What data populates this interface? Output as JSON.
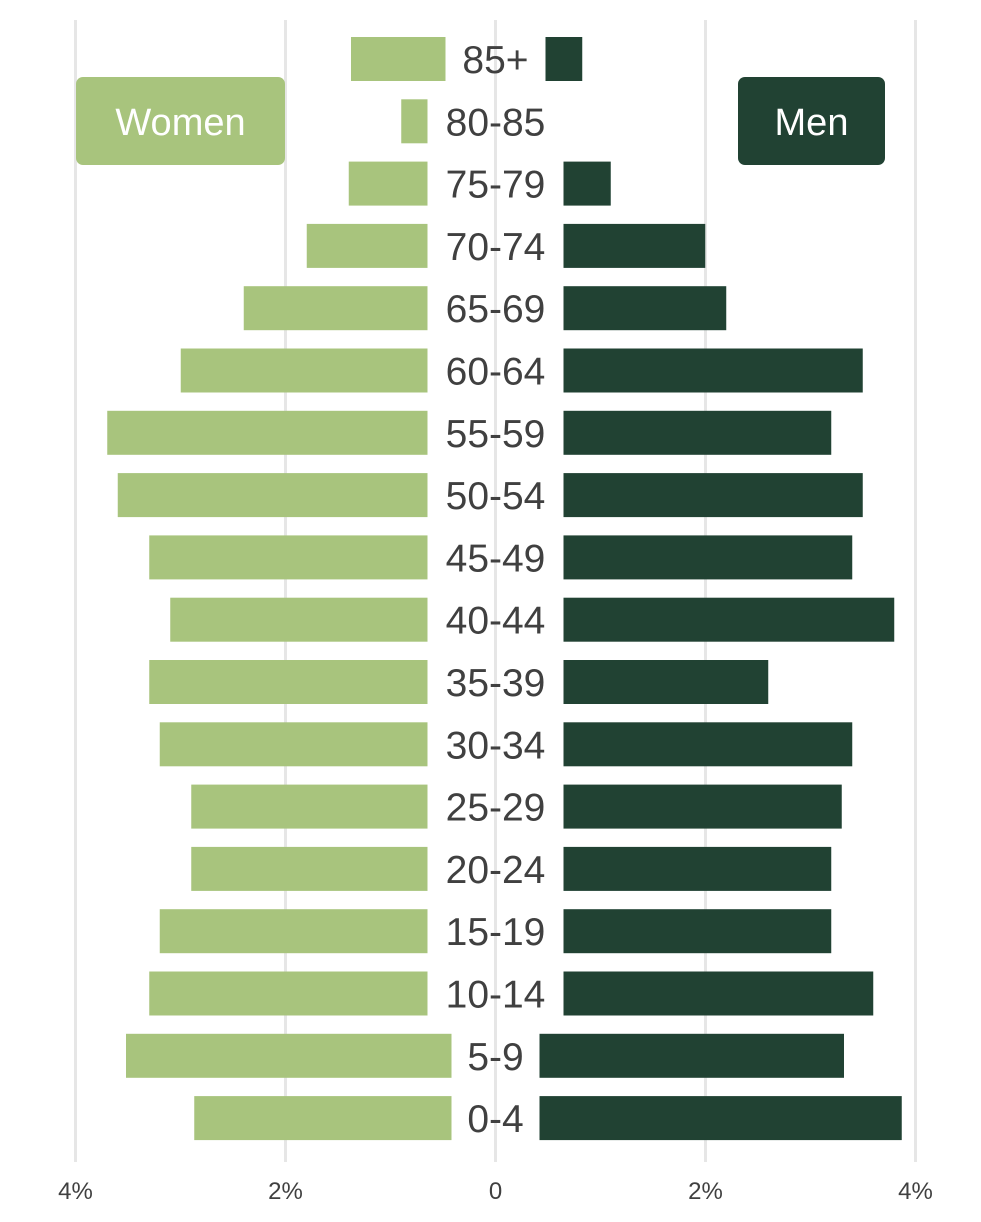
{
  "chart_data": {
    "type": "bar",
    "orientation": "horizontal",
    "categories": [
      "85+",
      "80-85",
      "75-79",
      "70-74",
      "65-69",
      "60-64",
      "55-59",
      "50-54",
      "45-49",
      "40-44",
      "35-39",
      "30-34",
      "25-29",
      "20-24",
      "15-19",
      "10-14",
      "5-9",
      "0-4"
    ],
    "series": [
      {
        "name": "Women",
        "color": "#a8c47d",
        "values": [
          0.9,
          0.25,
          0.75,
          1.15,
          1.75,
          2.35,
          3.05,
          2.95,
          2.65,
          2.45,
          2.65,
          2.55,
          2.25,
          2.25,
          2.55,
          2.65,
          3.1,
          2.45
        ]
      },
      {
        "name": "Men",
        "color": "#214233",
        "values": [
          0.35,
          0.0,
          0.45,
          1.35,
          1.55,
          2.85,
          2.55,
          2.85,
          2.75,
          3.15,
          1.95,
          2.75,
          2.65,
          2.55,
          2.55,
          2.95,
          2.9,
          3.45
        ]
      }
    ],
    "xlim": [
      -4,
      4
    ],
    "xticks": [
      "4%",
      "2%",
      "0",
      "2%",
      "4%"
    ],
    "xlabel": "",
    "ylabel": "",
    "grid": true,
    "legend": {
      "women_label": "Women",
      "men_label": "Men",
      "women_position": "top-left",
      "men_position": "top-right"
    }
  }
}
